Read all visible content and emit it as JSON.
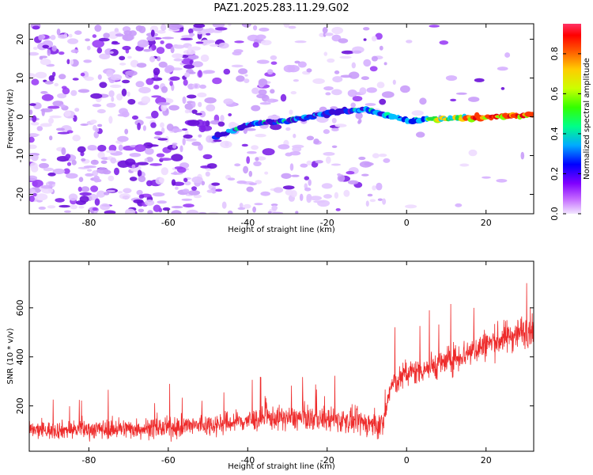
{
  "title": "PAZ1.2025.283.11.29.G02",
  "chart_data": [
    {
      "type": "heatmap",
      "name": "spectrogram",
      "xlabel": "Height of straight line (km)",
      "ylabel": "Frequency (Hz)",
      "xlim": [
        -95,
        32
      ],
      "ylim": [
        -25,
        24
      ],
      "xticks": [
        -80,
        -60,
        -40,
        -20,
        0,
        20
      ],
      "yticks": [
        20,
        10,
        0,
        -10,
        -20
      ],
      "signal_track": [
        {
          "x": -48,
          "y": -5
        },
        {
          "x": -40,
          "y": -2
        },
        {
          "x": -30,
          "y": -1
        },
        {
          "x": -20,
          "y": 1
        },
        {
          "x": -10,
          "y": 2
        },
        {
          "x": -4,
          "y": 0
        },
        {
          "x": 0,
          "y": -1
        },
        {
          "x": 10,
          "y": -0.5
        },
        {
          "x": 20,
          "y": 0
        },
        {
          "x": 32,
          "y": 0.5
        }
      ],
      "colorbar": {
        "label": "Normalized spectral amplitude",
        "range": [
          0,
          0.95
        ],
        "ticks": [
          "0.0",
          "0.2",
          "0.4",
          "0.6",
          "0.8"
        ]
      }
    },
    {
      "type": "line",
      "name": "snr",
      "xlabel": "Height of straight line (km)",
      "ylabel": "SNR (10 * v/v)",
      "xlim": [
        -95,
        32
      ],
      "ylim": [
        15,
        790
      ],
      "xticks": [
        -80,
        -60,
        -40,
        -20,
        0,
        20
      ],
      "yticks": [
        200,
        400,
        600
      ],
      "series_color": "#ee2b2b",
      "trend": [
        {
          "x": -95,
          "y": 100
        },
        {
          "x": -60,
          "y": 110
        },
        {
          "x": -45,
          "y": 130
        },
        {
          "x": -35,
          "y": 150
        },
        {
          "x": -25,
          "y": 150
        },
        {
          "x": -15,
          "y": 140
        },
        {
          "x": -6,
          "y": 120
        },
        {
          "x": -4,
          "y": 280
        },
        {
          "x": 0,
          "y": 330
        },
        {
          "x": 10,
          "y": 380
        },
        {
          "x": 20,
          "y": 450
        },
        {
          "x": 32,
          "y": 520
        }
      ],
      "noise_amplitude": [
        {
          "x": -95,
          "y": 60
        },
        {
          "x": -40,
          "y": 80
        },
        {
          "x": -5,
          "y": 90
        },
        {
          "x": 32,
          "y": 120
        }
      ]
    }
  ]
}
